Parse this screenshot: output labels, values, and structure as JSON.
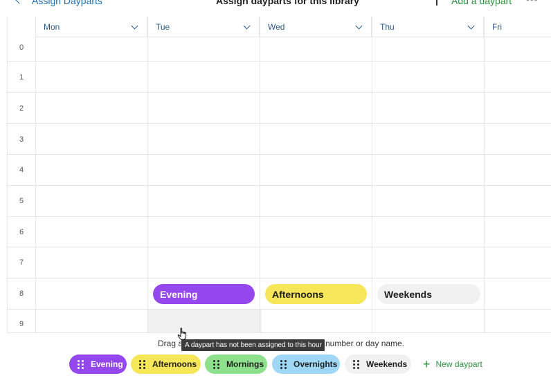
{
  "header": {
    "back_label": "Assign Dayparts",
    "title": "Assign dayparts for this library",
    "add_daypart_label": "Add a daypart",
    "more_label": "•••"
  },
  "days": [
    "Mon",
    "Tue",
    "Wed",
    "Thu",
    "Fri"
  ],
  "hours": [
    "0",
    "1",
    "2",
    "3",
    "4",
    "5",
    "6",
    "7",
    "8",
    "9"
  ],
  "assignments": [
    {
      "day": "Tue",
      "hour": "8",
      "label": "Evening",
      "color": "#9447ec"
    },
    {
      "day": "Wed",
      "hour": "8",
      "label": "Afternoons",
      "color": "#f6e65a"
    },
    {
      "day": "Thu",
      "hour": "8",
      "label": "Weekends",
      "color": "#f1f1f1"
    }
  ],
  "instruction": {
    "before": "Drag a",
    "after": "number or day name."
  },
  "tooltip": "A daypart has not been assigned to this hour",
  "chips": [
    {
      "label": "Evening",
      "color": "#9447ec"
    },
    {
      "label": "Afternoons",
      "color": "#f6e65a"
    },
    {
      "label": "Mornings",
      "color": "#8de08c"
    },
    {
      "label": "Overnights",
      "color": "#9fd8f7"
    },
    {
      "label": "Weekends",
      "color": "#f1f1f1"
    }
  ],
  "new_daypart_label": "New daypart"
}
